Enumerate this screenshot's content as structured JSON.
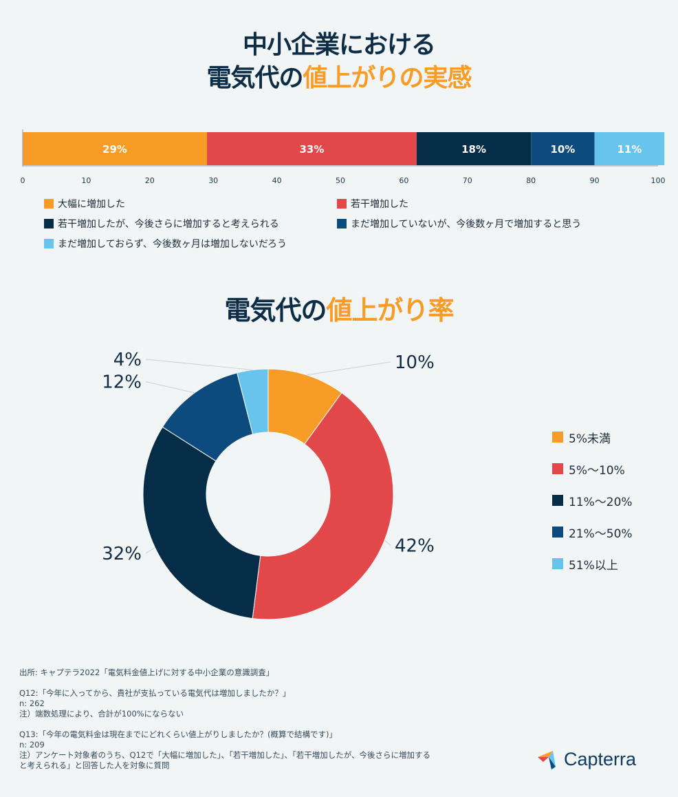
{
  "title1": {
    "line1": "中小企業における",
    "line2_dark": "電気代の",
    "line2_highlight": "値上がりの実感"
  },
  "title2": {
    "dark": "電気代の",
    "highlight": "値上がり率"
  },
  "chart_data": [
    {
      "type": "bar",
      "orientation": "horizontal-stacked",
      "categories": [
        "大幅に増加した",
        "若干増加した",
        "若干増加したが、今後さらに増加すると考えられる",
        "まだ増加していないが、今後数ヶ月で増加すると思う",
        "まだ増加しておらず、今後数ヶ月は増加しないだろう"
      ],
      "values": [
        29,
        33,
        18,
        10,
        11
      ],
      "labels": [
        "29%",
        "33%",
        "18%",
        "10%",
        "11%"
      ],
      "colors": [
        "#f79c26",
        "#e2474a",
        "#062d47",
        "#0d4a7d",
        "#67c4ec"
      ],
      "xlim": [
        0,
        100
      ],
      "xticks": [
        "0",
        "10",
        "20",
        "30",
        "40",
        "50",
        "60",
        "70",
        "80",
        "90",
        "100"
      ],
      "legend": "bottom"
    },
    {
      "type": "pie",
      "variant": "donut",
      "categories": [
        "5%未満",
        "5%〜10%",
        "11%〜20%",
        "21%〜50%",
        "51%以上"
      ],
      "values": [
        10,
        42,
        32,
        12,
        4
      ],
      "labels": [
        "10%",
        "42%",
        "32%",
        "12%",
        "4%"
      ],
      "colors": [
        "#f79c26",
        "#e2474a",
        "#062d47",
        "#0d4a7d",
        "#67c4ec"
      ],
      "legend": "right"
    }
  ],
  "notes": {
    "source": "出所: キャプテラ2022「電気料金値上げに対する中小企業の意識調査」",
    "q12": "Q12:「今年に入ってから、貴社が支払っている電気代は増加しましたか？」",
    "q12_n": " n: 262",
    "q12_note": " 注）端数処理により、合計が100%にならない",
    "q13": "Q13:「今年の電気料金は現在までにどれくらい値上がりしましたか？(概算で結構です)」",
    "q13_n": " n: 209",
    "q13_note1": " 注）アンケート対象者のうち、Q12で「大幅に増加した」、「若干増加した」、「若干増加したが、今後さらに増加する",
    "q13_note2": "と考えられる」と回答した人を対象に質問"
  },
  "logo": {
    "text": "Capterra",
    "icon": "capterra-arrow-icon"
  }
}
